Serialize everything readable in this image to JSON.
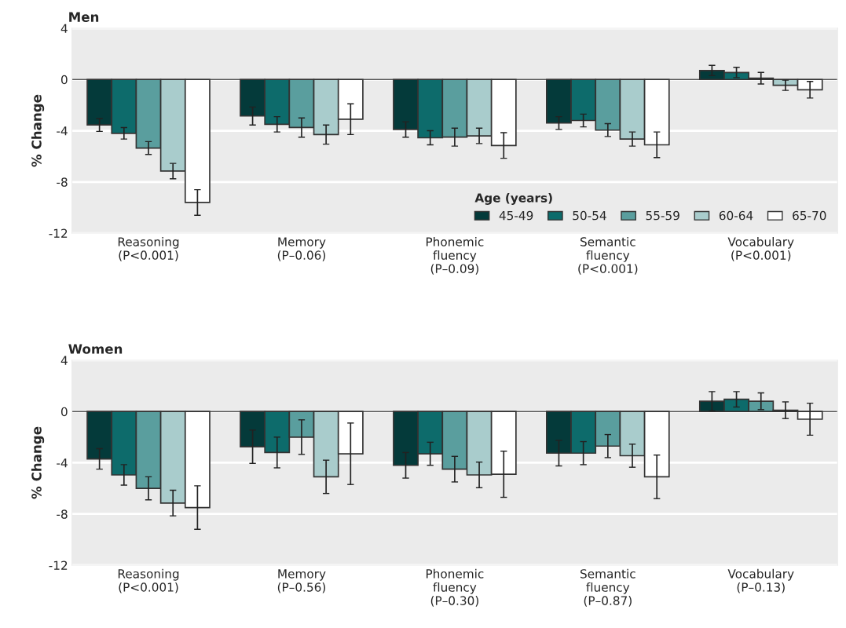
{
  "chart_data": [
    {
      "type": "bar",
      "title": "Men",
      "ylabel": "% Change",
      "legend_title": "Age (years)",
      "legend": "bottom right",
      "grid": "y",
      "categories": [
        "Reasoning\n(P<0.001)",
        "Memory\n(P–0.06)",
        "Phonemic\nfluency\n(P–0.09)",
        "Semantic\nfluency\n(P<0.001)",
        "Vocabulary\n(P<0.001)"
      ],
      "ylim": [
        -12,
        4
      ],
      "yticks": [
        4,
        0,
        -4,
        -8,
        -12
      ],
      "series": [
        {
          "name": "45-49",
          "color": "#043a3a",
          "values": [
            -3.55,
            -2.85,
            -3.9,
            -3.4,
            0.7
          ],
          "errors": [
            0.5,
            0.7,
            0.6,
            0.5,
            0.4
          ]
        },
        {
          "name": "50-54",
          "color": "#0d6b6b",
          "values": [
            -4.2,
            -3.5,
            -4.55,
            -3.2,
            0.55
          ],
          "errors": [
            0.45,
            0.6,
            0.55,
            0.5,
            0.4
          ]
        },
        {
          "name": "55-59",
          "color": "#5a9e9e",
          "values": [
            -5.35,
            -3.75,
            -4.5,
            -3.95,
            0.1
          ],
          "errors": [
            0.5,
            0.75,
            0.7,
            0.5,
            0.45
          ]
        },
        {
          "name": "60-64",
          "color": "#a9cccc",
          "values": [
            -7.15,
            -4.3,
            -4.4,
            -4.65,
            -0.45
          ],
          "errors": [
            0.6,
            0.75,
            0.6,
            0.55,
            0.4
          ]
        },
        {
          "name": "65-70",
          "color": "#ffffff",
          "values": [
            -9.6,
            -3.1,
            -5.15,
            -5.1,
            -0.8
          ],
          "errors": [
            1.0,
            1.2,
            1.0,
            1.0,
            0.65
          ]
        }
      ]
    },
    {
      "type": "bar",
      "title": "Women",
      "ylabel": "% Change",
      "grid": "y",
      "categories": [
        "Reasoning\n(P<0.001)",
        "Memory\n(P–0.56)",
        "Phonemic\nfluency\n(P–0.30)",
        "Semantic\nfluency\n(P–0.87)",
        "Vocabulary\n(P–0.13)"
      ],
      "ylim": [
        -12,
        4
      ],
      "yticks": [
        4,
        0,
        -4,
        -8,
        -12
      ],
      "series": [
        {
          "color": "#043a3a",
          "values": [
            -3.7,
            -2.75,
            -4.2,
            -3.25,
            0.8
          ],
          "errors": [
            0.8,
            1.3,
            1.0,
            1.0,
            0.75
          ]
        },
        {
          "color": "#0d6b6b",
          "values": [
            -4.95,
            -3.2,
            -3.3,
            -3.25,
            0.95
          ],
          "errors": [
            0.8,
            1.2,
            0.9,
            0.9,
            0.6
          ]
        },
        {
          "color": "#5a9e9e",
          "values": [
            -6.0,
            -2.0,
            -4.5,
            -2.7,
            0.8
          ],
          "errors": [
            0.9,
            1.35,
            1.0,
            0.9,
            0.65
          ]
        },
        {
          "color": "#a9cccc",
          "values": [
            -7.15,
            -5.1,
            -4.95,
            -3.45,
            0.1
          ],
          "errors": [
            1.0,
            1.3,
            1.0,
            0.9,
            0.65
          ]
        },
        {
          "color": "#ffffff",
          "values": [
            -7.5,
            -3.3,
            -4.9,
            -5.1,
            -0.6
          ],
          "errors": [
            1.7,
            2.4,
            1.8,
            1.7,
            1.25
          ]
        }
      ]
    }
  ]
}
